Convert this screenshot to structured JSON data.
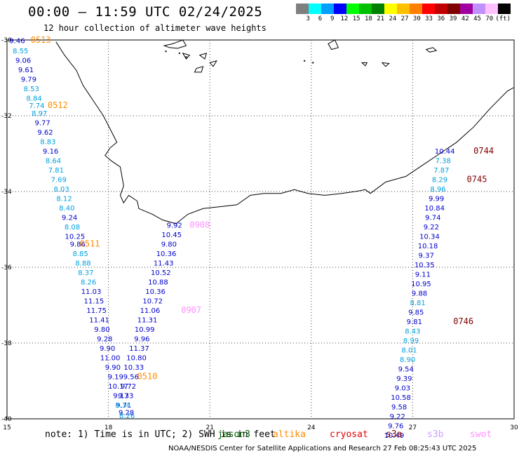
{
  "title": "00:00 — 11:59 UTC 02/24/2025",
  "subtitle": "12 hour collection of altimeter wave heights",
  "scale": {
    "unit": "(ft)",
    "colors": [
      "#7f7f7f",
      "#00ffff",
      "#00a0ff",
      "#0000ff",
      "#00ff00",
      "#00c000",
      "#008000",
      "#ffff00",
      "#ffc000",
      "#ff8000",
      "#ff0000",
      "#c00000",
      "#800000",
      "#a000a0",
      "#c090ff",
      "#ffc0ff",
      "#000000"
    ],
    "labels": [
      "3",
      "6",
      "9",
      "12",
      "15",
      "18",
      "21",
      "24",
      "27",
      "30",
      "33",
      "36",
      "39",
      "42",
      "45",
      "70"
    ]
  },
  "note": "note: 1) Time is in UTC; 2) SWH is in feet",
  "legend": [
    {
      "name": "jason3",
      "color": "#006400"
    },
    {
      "name": "altika",
      "color": "#ff8c00"
    },
    {
      "name": "cryosat",
      "color": "#e00000"
    },
    {
      "name": "s3a",
      "color": "#800000"
    },
    {
      "name": "s3b",
      "color": "#c8a0ff"
    },
    {
      "name": "swot",
      "color": "#ff90ff"
    }
  ],
  "credit": "NOAA/NESDIS Center for Satellite Applications and Research    27 Feb 08:25:43 UTC 2025",
  "axes": {
    "lon_labels": [
      "15",
      "18",
      "21",
      "24",
      "27",
      "30"
    ],
    "lat_labels": [
      "-30",
      "-32",
      "-34",
      "-36",
      "-38",
      "-40"
    ]
  },
  "passes": [
    {
      "id": "0513",
      "color": "#ff8c00",
      "label_pos": [
        16.0,
        -30.07
      ],
      "points": [
        {
          "lon": 15.3,
          "lat": -30.08,
          "v": "9.46",
          "c": "#0000cc"
        },
        {
          "lon": 15.4,
          "lat": -30.35,
          "v": "8.55",
          "c": "#00a0e0"
        },
        {
          "lon": 15.48,
          "lat": -30.6,
          "v": "9.06",
          "c": "#0000cc"
        },
        {
          "lon": 15.56,
          "lat": -30.85,
          "v": "9.61",
          "c": "#0000cc"
        },
        {
          "lon": 15.64,
          "lat": -31.1,
          "v": "9.79",
          "c": "#0000cc"
        },
        {
          "lon": 15.72,
          "lat": -31.35,
          "v": "8.53",
          "c": "#00a0e0"
        },
        {
          "lon": 15.8,
          "lat": -31.6,
          "v": "8.84",
          "c": "#00a0e0"
        }
      ]
    },
    {
      "id": "0512",
      "color": "#ff8c00",
      "label_pos": [
        16.5,
        -31.8
      ],
      "points": [
        {
          "lon": 15.88,
          "lat": -31.8,
          "v": "7.74",
          "c": "#00a0e0"
        },
        {
          "lon": 15.96,
          "lat": -32.0,
          "v": "8.97",
          "c": "#00a0e0"
        },
        {
          "lon": 16.05,
          "lat": -32.25,
          "v": "9.77",
          "c": "#0000cc"
        },
        {
          "lon": 16.13,
          "lat": -32.5,
          "v": "9.62",
          "c": "#0000cc"
        },
        {
          "lon": 16.21,
          "lat": -32.75,
          "v": "8.83",
          "c": "#00a0e0"
        },
        {
          "lon": 16.29,
          "lat": -33.0,
          "v": "9.16",
          "c": "#0000cc"
        },
        {
          "lon": 16.37,
          "lat": -33.25,
          "v": "8.64",
          "c": "#00a0e0"
        },
        {
          "lon": 16.45,
          "lat": -33.5,
          "v": "7.81",
          "c": "#00a0e0"
        },
        {
          "lon": 16.53,
          "lat": -33.75,
          "v": "7.69",
          "c": "#00a0e0"
        },
        {
          "lon": 16.61,
          "lat": -34.0,
          "v": "8.03",
          "c": "#00a0e0"
        },
        {
          "lon": 16.69,
          "lat": -34.25,
          "v": "8.12",
          "c": "#00a0e0"
        },
        {
          "lon": 16.77,
          "lat": -34.5,
          "v": "8.40",
          "c": "#00a0e0"
        },
        {
          "lon": 16.85,
          "lat": -34.75,
          "v": "9.24",
          "c": "#0000cc"
        },
        {
          "lon": 16.93,
          "lat": -35.0,
          "v": "8.08",
          "c": "#00a0e0"
        },
        {
          "lon": 17.01,
          "lat": -35.25,
          "v": "10.25",
          "c": "#0000cc"
        }
      ]
    },
    {
      "id": "0511",
      "color": "#ff8c00",
      "label_pos": [
        17.45,
        -35.45
      ],
      "points": [
        {
          "lon": 17.09,
          "lat": -35.45,
          "v": "9.86",
          "c": "#0000cc"
        },
        {
          "lon": 17.17,
          "lat": -35.7,
          "v": "8.85",
          "c": "#00a0e0"
        },
        {
          "lon": 17.25,
          "lat": -35.95,
          "v": "8.88",
          "c": "#00a0e0"
        },
        {
          "lon": 17.33,
          "lat": -36.2,
          "v": "8.37",
          "c": "#00a0e0"
        },
        {
          "lon": 17.41,
          "lat": -36.45,
          "v": "8.26",
          "c": "#00a0e0"
        },
        {
          "lon": 17.49,
          "lat": -36.7,
          "v": "11.03",
          "c": "#0000cc"
        },
        {
          "lon": 17.57,
          "lat": -36.95,
          "v": "11.15",
          "c": "#0000cc"
        },
        {
          "lon": 17.65,
          "lat": -37.2,
          "v": "11.75",
          "c": "#0000cc"
        },
        {
          "lon": 17.73,
          "lat": -37.45,
          "v": "11.41",
          "c": "#0000cc"
        },
        {
          "lon": 17.81,
          "lat": -37.7,
          "v": "9.80",
          "c": "#0000cc"
        },
        {
          "lon": 17.89,
          "lat": -37.95,
          "v": "9.28",
          "c": "#0000cc"
        },
        {
          "lon": 17.97,
          "lat": -38.2,
          "v": "9.90",
          "c": "#0000cc"
        },
        {
          "lon": 18.05,
          "lat": -38.45,
          "v": "11.00",
          "c": "#0000cc"
        },
        {
          "lon": 18.13,
          "lat": -38.7,
          "v": "9.90",
          "c": "#0000cc"
        },
        {
          "lon": 18.21,
          "lat": -38.95,
          "v": "9.19",
          "c": "#0000cc"
        },
        {
          "lon": 18.29,
          "lat": -39.2,
          "v": "10.17",
          "c": "#0000cc"
        },
        {
          "lon": 18.37,
          "lat": -39.45,
          "v": "9.17",
          "c": "#0000cc"
        },
        {
          "lon": 18.45,
          "lat": -39.7,
          "v": "9.71",
          "c": "#0000cc"
        },
        {
          "lon": 18.53,
          "lat": -39.9,
          "v": "9.28",
          "c": "#0000cc"
        }
      ]
    },
    {
      "id": "0510",
      "color": "#ff8c00",
      "label_pos": [
        19.15,
        -38.95
      ],
      "points": []
    },
    {
      "id": "0908",
      "color": "#ff90ff",
      "label_pos": [
        20.7,
        -34.95
      ],
      "points": [
        {
          "lon": 19.95,
          "lat": -34.95,
          "v": "9.92",
          "c": "#0000cc"
        },
        {
          "lon": 19.87,
          "lat": -35.2,
          "v": "10.45",
          "c": "#0000cc"
        },
        {
          "lon": 19.79,
          "lat": -35.45,
          "v": "9.80",
          "c": "#0000cc"
        },
        {
          "lon": 19.71,
          "lat": -35.7,
          "v": "10.36",
          "c": "#0000cc"
        },
        {
          "lon": 19.63,
          "lat": -35.95,
          "v": "11.43",
          "c": "#0000cc"
        },
        {
          "lon": 19.55,
          "lat": -36.2,
          "v": "10.52",
          "c": "#0000cc"
        },
        {
          "lon": 19.47,
          "lat": -36.45,
          "v": "10.88",
          "c": "#0000cc"
        },
        {
          "lon": 19.39,
          "lat": -36.7,
          "v": "10.36",
          "c": "#0000cc"
        },
        {
          "lon": 19.31,
          "lat": -36.95,
          "v": "10.72",
          "c": "#0000cc"
        }
      ]
    },
    {
      "id": "0907",
      "color": "#ff90ff",
      "label_pos": [
        20.45,
        -37.2
      ],
      "points": [
        {
          "lon": 19.23,
          "lat": -37.2,
          "v": "11.06",
          "c": "#0000cc"
        },
        {
          "lon": 19.15,
          "lat": -37.45,
          "v": "11.31",
          "c": "#0000cc"
        },
        {
          "lon": 19.07,
          "lat": -37.7,
          "v": "10.99",
          "c": "#0000cc"
        },
        {
          "lon": 18.99,
          "lat": -37.95,
          "v": "9.96",
          "c": "#0000cc"
        },
        {
          "lon": 18.91,
          "lat": -38.2,
          "v": "11.37",
          "c": "#0000cc"
        },
        {
          "lon": 18.83,
          "lat": -38.45,
          "v": "10.80",
          "c": "#0000cc"
        },
        {
          "lon": 18.75,
          "lat": -38.7,
          "v": "10.33",
          "c": "#0000cc"
        },
        {
          "lon": 18.67,
          "lat": -38.95,
          "v": "9.56",
          "c": "#0000cc"
        },
        {
          "lon": 18.59,
          "lat": -39.2,
          "v": "9.72",
          "c": "#0000cc"
        },
        {
          "lon": 18.51,
          "lat": -39.45,
          "v": "9.33",
          "c": "#0000cc"
        },
        {
          "lon": 18.43,
          "lat": -39.7,
          "v": "8.34",
          "c": "#00a0e0"
        },
        {
          "lon": 18.55,
          "lat": -39.98,
          "v": "8.26",
          "c": "#00a0e0"
        }
      ]
    },
    {
      "id": "0744",
      "color": "#800000",
      "label_pos": [
        29.1,
        -33.0
      ],
      "points": [
        {
          "lon": 27.95,
          "lat": -33.0,
          "v": "10.44",
          "c": "#0000cc"
        },
        {
          "lon": 27.9,
          "lat": -33.25,
          "v": "7.38",
          "c": "#00a0e0"
        },
        {
          "lon": 27.85,
          "lat": -33.5,
          "v": "7.87",
          "c": "#00a0e0"
        },
        {
          "lon": 27.8,
          "lat": -33.75,
          "v": "8.29",
          "c": "#00a0e0"
        }
      ]
    },
    {
      "id": "0745",
      "color": "#800000",
      "label_pos": [
        28.9,
        -33.75
      ],
      "points": [
        {
          "lon": 27.75,
          "lat": -34.0,
          "v": "8.96",
          "c": "#00a0e0"
        },
        {
          "lon": 27.7,
          "lat": -34.25,
          "v": "9.99",
          "c": "#0000cc"
        },
        {
          "lon": 27.65,
          "lat": -34.5,
          "v": "10.84",
          "c": "#0000cc"
        },
        {
          "lon": 27.6,
          "lat": -34.75,
          "v": "9.74",
          "c": "#0000cc"
        },
        {
          "lon": 27.55,
          "lat": -35.0,
          "v": "9.22",
          "c": "#0000cc"
        },
        {
          "lon": 27.5,
          "lat": -35.25,
          "v": "10.34",
          "c": "#0000cc"
        },
        {
          "lon": 27.45,
          "lat": -35.5,
          "v": "10.18",
          "c": "#0000cc"
        },
        {
          "lon": 27.4,
          "lat": -35.75,
          "v": "9.37",
          "c": "#0000cc"
        },
        {
          "lon": 27.35,
          "lat": -36.0,
          "v": "10.35",
          "c": "#0000cc"
        },
        {
          "lon": 27.3,
          "lat": -36.25,
          "v": "9.11",
          "c": "#0000cc"
        },
        {
          "lon": 27.25,
          "lat": -36.5,
          "v": "10.95",
          "c": "#0000cc"
        },
        {
          "lon": 27.2,
          "lat": -36.75,
          "v": "9.88",
          "c": "#0000cc"
        },
        {
          "lon": 27.15,
          "lat": -37.0,
          "v": "8.81",
          "c": "#00a0e0"
        },
        {
          "lon": 27.1,
          "lat": -37.25,
          "v": "9.85",
          "c": "#0000cc"
        },
        {
          "lon": 27.05,
          "lat": -37.5,
          "v": "9.81",
          "c": "#0000cc"
        }
      ]
    },
    {
      "id": "0746",
      "color": "#800000",
      "label_pos": [
        28.5,
        -37.5
      ],
      "points": [
        {
          "lon": 27.0,
          "lat": -37.75,
          "v": "8.43",
          "c": "#00a0e0"
        },
        {
          "lon": 26.95,
          "lat": -38.0,
          "v": "8.99",
          "c": "#00a0e0"
        },
        {
          "lon": 26.9,
          "lat": -38.25,
          "v": "8.01",
          "c": "#00a0e0"
        },
        {
          "lon": 26.85,
          "lat": -38.5,
          "v": "8.90",
          "c": "#00a0e0"
        },
        {
          "lon": 26.8,
          "lat": -38.75,
          "v": "9.54",
          "c": "#0000cc"
        },
        {
          "lon": 26.75,
          "lat": -39.0,
          "v": "9.39",
          "c": "#0000cc"
        },
        {
          "lon": 26.7,
          "lat": -39.25,
          "v": "9.03",
          "c": "#0000cc"
        },
        {
          "lon": 26.65,
          "lat": -39.5,
          "v": "10.58",
          "c": "#0000cc"
        },
        {
          "lon": 26.6,
          "lat": -39.75,
          "v": "9.58",
          "c": "#0000cc"
        },
        {
          "lon": 26.55,
          "lat": -40.0,
          "v": "9.22",
          "c": "#0000cc"
        },
        {
          "lon": 26.5,
          "lat": -40.25,
          "v": "9.76",
          "c": "#0000cc"
        },
        {
          "lon": 26.45,
          "lat": -40.5,
          "v": "10.49",
          "c": "#0000cc"
        }
      ]
    }
  ]
}
